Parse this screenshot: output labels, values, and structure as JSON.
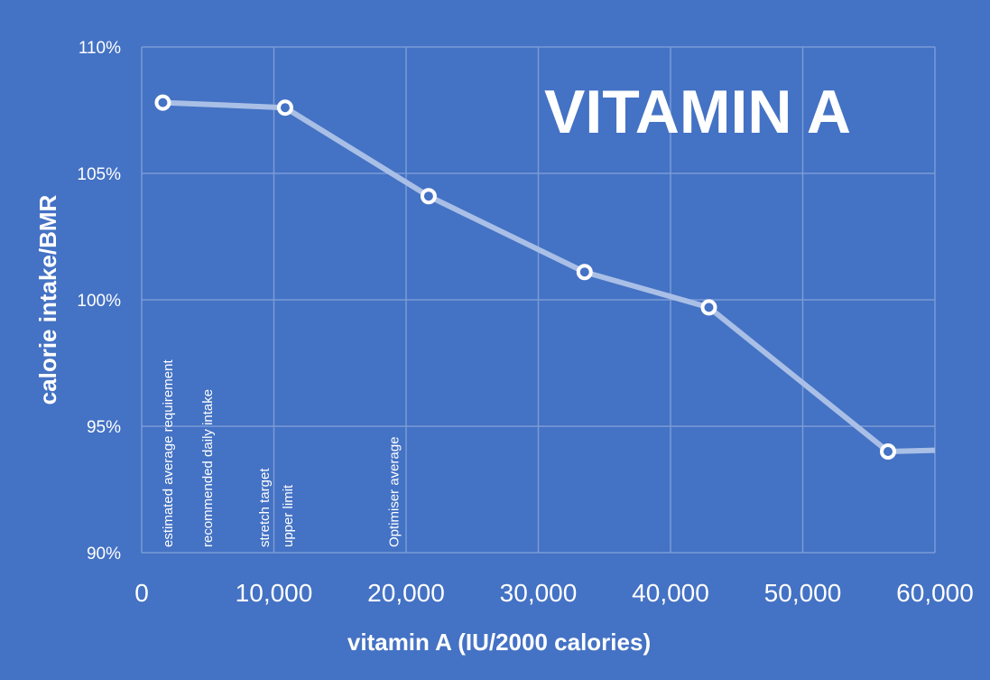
{
  "chart_data": {
    "type": "line",
    "title": "VITAMIN A",
    "xlabel": "vitamin A (IU/2000 calories)",
    "ylabel": "calorie intake/BMR",
    "xlim": [
      0,
      60000
    ],
    "ylim": [
      90,
      110
    ],
    "x_ticks": [
      0,
      10000,
      20000,
      30000,
      40000,
      50000,
      60000
    ],
    "x_tick_labels": [
      "0",
      "10,000",
      "20,000",
      "30,000",
      "40,000",
      "50,000",
      "60,000"
    ],
    "y_ticks": [
      90,
      95,
      100,
      105,
      110
    ],
    "y_tick_labels": [
      "90%",
      "95%",
      "100%",
      "105%",
      "110%"
    ],
    "grid": true,
    "series": [
      {
        "name": "calorie intake/BMR",
        "x": [
          1600,
          10850,
          21700,
          33500,
          42900,
          56450
        ],
        "y": [
          107.8,
          107.6,
          104.1,
          101.1,
          99.7,
          94.0
        ],
        "continues_to": {
          "x": 60000,
          "y": 94.05
        }
      }
    ],
    "annotations": [
      {
        "label": "estimated average requirement",
        "x": 1900
      },
      {
        "label": "recommended daily intake",
        "x": 4900
      },
      {
        "label": "stretch target",
        "x": 9200
      },
      {
        "label": "upper limit",
        "x": 11000
      },
      {
        "label": "Optimiser average",
        "x": 19000
      }
    ],
    "colors": {
      "background": "#4472C4",
      "grid": "#7A9BD6",
      "line": "#A9BFE6",
      "marker": "#FFFFFF"
    }
  }
}
